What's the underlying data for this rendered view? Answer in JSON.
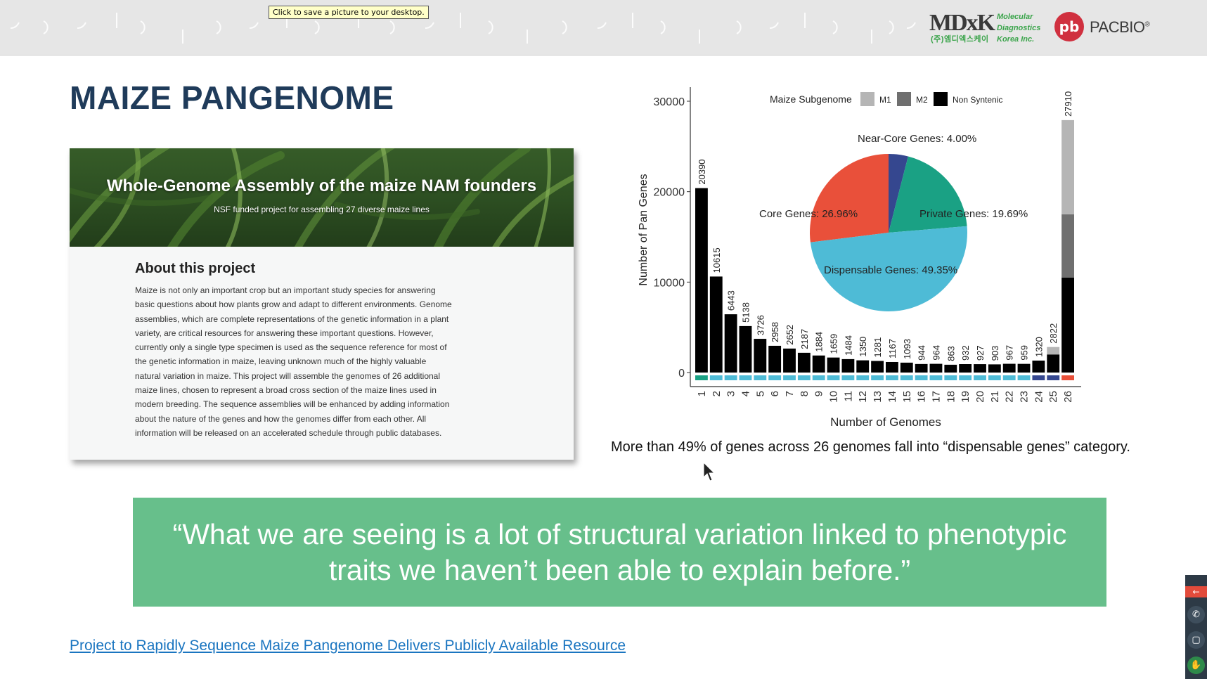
{
  "tooltip": "Click to save a picture to your desktop.",
  "logos": {
    "mdk_main": "MDxK",
    "mdk_sub": [
      "Molecular",
      "Diagnostics",
      "Korea Inc."
    ],
    "mdk_korean": "(주)엠디엑스케이",
    "pacbio_mark": "pb",
    "pacbio_text": "PACBIO",
    "pacbio_reg": "®"
  },
  "slide": {
    "title": "MAIZE PANGENOME",
    "card": {
      "hero_title": "Whole-Genome Assembly of the maize NAM founders",
      "hero_subtitle": "NSF funded project for assembling 27 diverse maize lines",
      "about_title": "About this project",
      "about_lines": [
        "Maize is not only an important crop but an important study species for answering",
        "basic questions about how plants grow and adapt to different environments. Genome",
        "assemblies, which are complete representations of the genetic information in a plant",
        "variety, are critical resources for answering these important questions. However,",
        "currently only a single type specimen is used as the sequence reference for most of",
        "the genetic information in maize, leaving unknown much of the highly valuable",
        "natural variation in maize. This project will assemble the genomes of 26 additional",
        "maize lines, chosen to represent a broad cross section of the maize lines used in",
        "modern breeding. The sequence assemblies will be enhanced by adding information",
        "about the nature of the genes and how the genomes differ from each other. All",
        "information will be released on an accelerated schedule through public databases."
      ]
    },
    "caption": "More than 49% of genes across 26 genomes fall into “dispensable genes” category.",
    "quote": "“What we are seeing is a lot of structural variation linked to phenotypic traits we haven’t been able to explain before.”",
    "link": "Project to Rapidly Sequence Maize Pangenome Delivers Publicly Available Resource"
  },
  "chart_data": [
    {
      "type": "bar",
      "title": "",
      "xlabel": "Number of Genomes",
      "ylabel": "Number of Pan Genes",
      "ylim": [
        0,
        30000
      ],
      "yticks": [
        0,
        10000,
        20000,
        30000
      ],
      "categories": [
        "1",
        "2",
        "3",
        "4",
        "5",
        "6",
        "7",
        "8",
        "9",
        "10",
        "11",
        "12",
        "13",
        "14",
        "15",
        "16",
        "17",
        "18",
        "19",
        "20",
        "21",
        "22",
        "23",
        "24",
        "25",
        "26"
      ],
      "values": [
        20390,
        10615,
        6443,
        5138,
        3726,
        2958,
        2652,
        2187,
        1884,
        1659,
        1484,
        1350,
        1281,
        1167,
        1093,
        944,
        964,
        863,
        932,
        927,
        903,
        967,
        959,
        1320,
        2822,
        27910
      ],
      "stacks_last_bar": {
        "non_syntenic": 10500,
        "m2": 7000,
        "m1": 10410
      },
      "stacks_bar_25": {
        "non_syntenic": 2000,
        "m1": 822
      },
      "legend": {
        "title": "Maize Subgenome",
        "entries": [
          {
            "name": "M1",
            "color": "#b5b5b5"
          },
          {
            "name": "M2",
            "color": "#6f6f6f"
          },
          {
            "name": "Non Syntenic",
            "color": "#000000"
          }
        ],
        "placement": "top"
      },
      "category_strip_colors": {
        "core": "#1aa184",
        "dispensable": "#4ebbd6",
        "near_core": "#35478f",
        "private": "#e9503a"
      },
      "grid": false
    },
    {
      "type": "pie",
      "slices": [
        {
          "label": "Core Genes",
          "value": 26.96,
          "color": "#e9503a"
        },
        {
          "label": "Near-Core Genes",
          "value": 4.0,
          "color": "#35478f"
        },
        {
          "label": "Private Genes",
          "value": 19.69,
          "color": "#1aa184"
        },
        {
          "label": "Dispensable Genes",
          "value": 49.35,
          "color": "#4ebbd6"
        }
      ]
    }
  ],
  "sidebar": {
    "icons": [
      "arrow-left-icon",
      "phone-icon",
      "window-icon",
      "hand-icon"
    ],
    "glyphs": [
      "←",
      "✆",
      "▢",
      "✋"
    ]
  }
}
